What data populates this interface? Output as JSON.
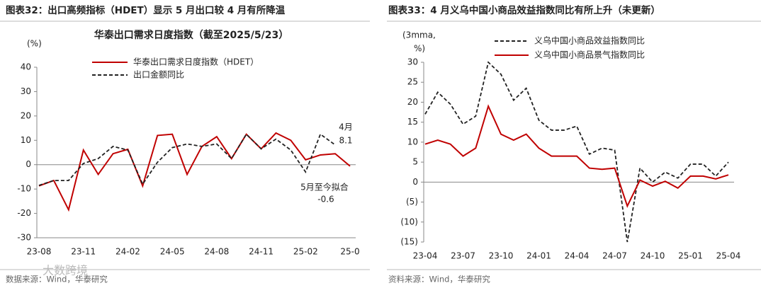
{
  "chart_data": [
    {
      "type": "line",
      "header": "图表32：出口高频指标（HDET）显示 5 月出口较 4 月有所降温",
      "title": "华泰出口需求日度指数（截至2025/5/23）",
      "y_label": [
        "(%)"
      ],
      "categories": [
        "23-08",
        null,
        null,
        "23-11",
        null,
        null,
        "24-02",
        null,
        null,
        "24-05",
        null,
        null,
        "24-08",
        null,
        null,
        "24-11",
        null,
        null,
        "25-02",
        null,
        null,
        "25-0"
      ],
      "series": [
        {
          "name": "华泰出口需求日度指数（HDET）",
          "color": "#c00000",
          "dash": false,
          "values": [
            -8.7,
            -6.5,
            -18.5,
            6,
            -4,
            4.5,
            6.3,
            -8.7,
            12,
            12.5,
            -4,
            7.5,
            11.5,
            2.5,
            12.5,
            6.5,
            13,
            10,
            2,
            4,
            4.5,
            -0.6
          ]
        },
        {
          "name": "出口金额同比",
          "color": "#222222",
          "dash": true,
          "values": [
            -8.5,
            -6.5,
            -6.5,
            0.5,
            2.5,
            7.5,
            6,
            -8,
            1,
            7,
            8.5,
            7.5,
            8.5,
            2.5,
            12.5,
            6.5,
            10.5,
            6,
            -3,
            12.5,
            8.1,
            null
          ]
        }
      ],
      "ylim": [
        -30,
        40
      ],
      "yticks": [
        -30,
        -20,
        -10,
        0,
        10,
        20,
        30,
        40
      ],
      "annotations": [
        {
          "text": "4月",
          "value": 8.1,
          "color": "#222222"
        },
        {
          "text": "5月至今拟合",
          "value": -0.6,
          "color": "#c00000"
        }
      ],
      "source": "数据来源：Wind，华泰研究"
    },
    {
      "type": "line",
      "header": "图表33：4 月义乌中国小商品效益指数同比有所上升（未更新）",
      "y_label": [
        "(3mma,",
        "%)"
      ],
      "categories": [
        "23-04",
        null,
        null,
        "23-07",
        null,
        null,
        "23-10",
        null,
        null,
        "24-01",
        null,
        null,
        "24-04",
        null,
        null,
        "24-07",
        null,
        null,
        "24-10",
        null,
        null,
        "25-01",
        null,
        null,
        "25-04"
      ],
      "series": [
        {
          "name": "义乌中国小商品效益指数同比",
          "color": "#222222",
          "dash": true,
          "values": [
            17,
            22.5,
            19.5,
            14.5,
            16.5,
            30,
            27,
            20.5,
            23.5,
            15.5,
            13,
            13,
            14,
            7,
            8.5,
            8,
            -15,
            3.5,
            0,
            2.5,
            1,
            4.5,
            4.5,
            1.5,
            5
          ]
        },
        {
          "name": "义乌中国小商品景气指数同比",
          "color": "#c00000",
          "dash": false,
          "values": [
            9.5,
            10.5,
            9.5,
            6.5,
            8.5,
            19,
            12,
            10.5,
            12,
            8.5,
            6.5,
            6.5,
            6.5,
            3.5,
            3.2,
            3.5,
            -6,
            0.5,
            -1,
            0.2,
            -1.5,
            1.5,
            1.5,
            0.8,
            1.8
          ]
        }
      ],
      "ylim": [
        -15,
        30
      ],
      "yticks": [
        {
          "value": -15,
          "label": "(15)"
        },
        {
          "value": -10,
          "label": "(10)"
        },
        {
          "value": -5,
          "label": "(5)"
        },
        0,
        5,
        10,
        15,
        20,
        25,
        30
      ],
      "source": "资料来源：Wind，华泰研究"
    }
  ],
  "watermark": "大数跨境"
}
